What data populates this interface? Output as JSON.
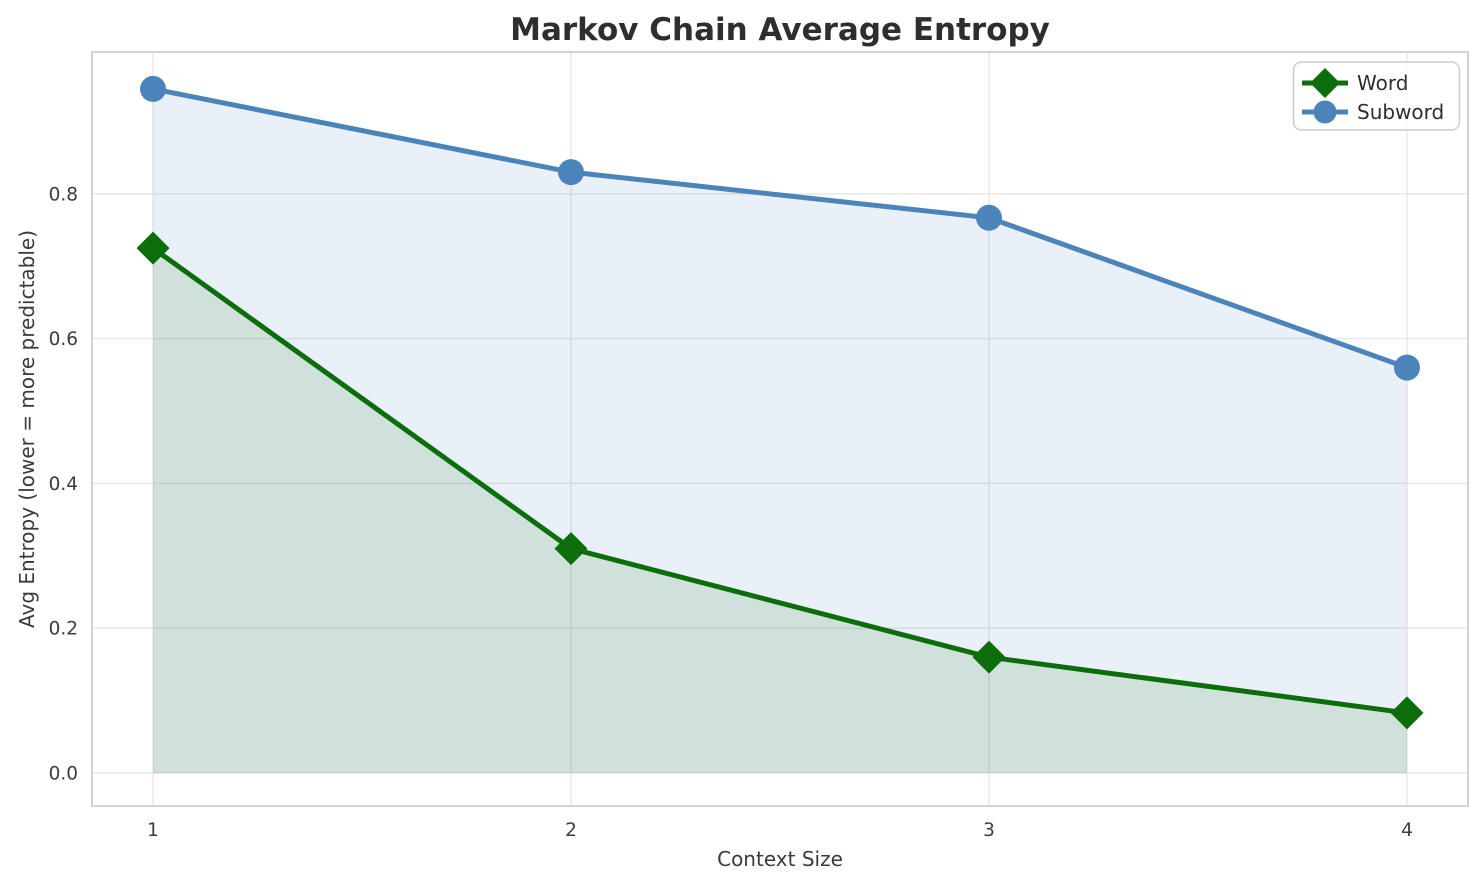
{
  "title": "Markov Chain Average Entropy",
  "chart_data": {
    "type": "line",
    "title": "Markov Chain Average Entropy",
    "xlabel": "Context Size",
    "ylabel": "Avg Entropy (lower = more predictable)",
    "x": [
      1,
      2,
      3,
      4
    ],
    "series": [
      {
        "name": "Word",
        "values": [
          0.725,
          0.31,
          0.16,
          0.083
        ],
        "color": "#0b6e0b",
        "marker": "diamond",
        "area_fill": true,
        "fill_alpha": 0.11
      },
      {
        "name": "Subword",
        "values": [
          0.945,
          0.83,
          0.767,
          0.56
        ],
        "color": "#4a84ba",
        "marker": "circle",
        "area_fill": true,
        "fill_alpha": 0.12
      }
    ],
    "x_tick_labels": [
      "1",
      "2",
      "3",
      "4"
    ],
    "y_tick_labels": [
      "0.0",
      "0.2",
      "0.4",
      "0.6",
      "0.8"
    ],
    "y_tick_values": [
      0.0,
      0.2,
      0.4,
      0.6,
      0.8
    ],
    "xlim": [
      0.854,
      4.146
    ],
    "ylim": [
      -0.0456,
      0.996
    ],
    "grid": true,
    "grid_color": "#e8e8e8",
    "spine_color": "#d2d2d2",
    "legend_position": "upper right",
    "legend_border_color": "#cccccc"
  }
}
